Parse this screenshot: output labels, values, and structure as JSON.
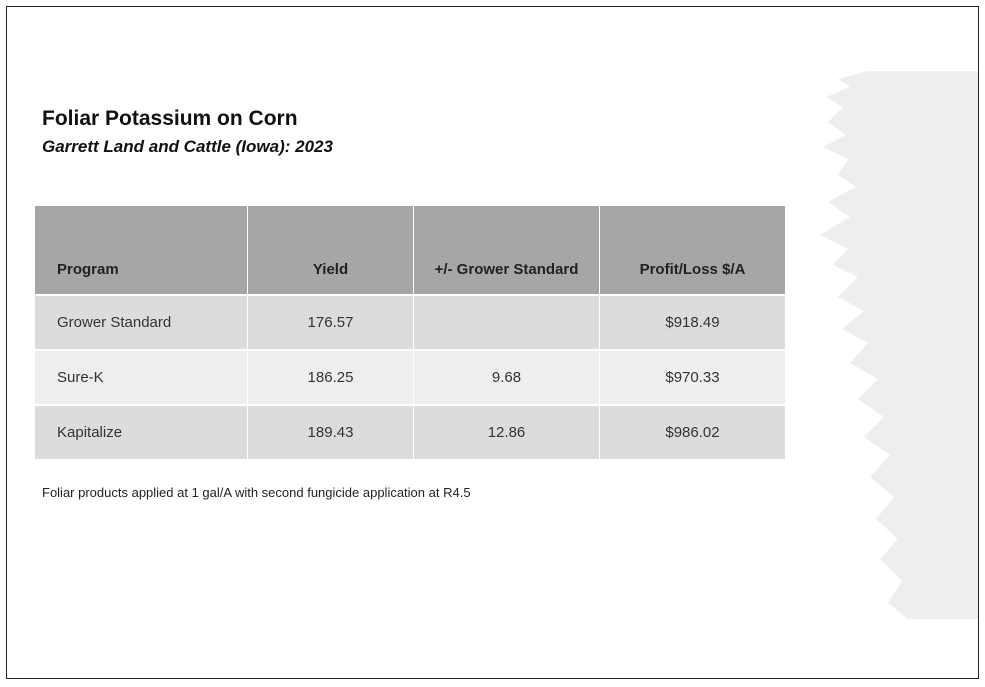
{
  "title": "Foliar Potassium on Corn",
  "subtitle": "Garrett Land and Cattle (Iowa): 2023",
  "table": {
    "headers": [
      "Program",
      "Yield",
      "+/-  Grower Standard",
      "Profit/Loss $/A"
    ],
    "rows": [
      {
        "program": "Grower Standard",
        "yield": "176.57",
        "diff": "",
        "profit": "$918.49"
      },
      {
        "program": "Sure-K",
        "yield": "186.25",
        "diff": "9.68",
        "profit": "$970.33"
      },
      {
        "program": "Kapitalize",
        "yield": "189.43",
        "diff": "12.86",
        "profit": "$986.02"
      }
    ]
  },
  "footnote": "Foliar products applied at 1 gal/A with second fungicide application at R4.5",
  "colors": {
    "header_bg": "#a6a6a6",
    "row_dark": "#dcdcdc",
    "row_light": "#eeeeee",
    "decor": "#eeeeee"
  }
}
